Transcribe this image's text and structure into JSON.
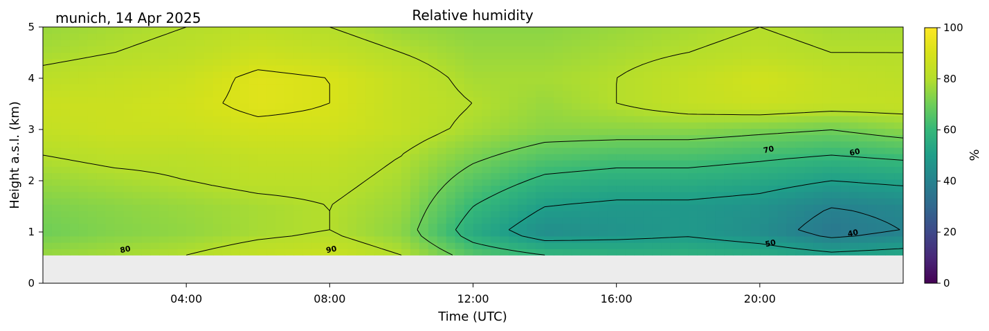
{
  "chart_data": {
    "type": "heatmap",
    "title": "Relative humidity",
    "site_date_label": "munich, 14 Apr 2025",
    "xlabel": "Time (UTC)",
    "ylabel": "Height a.s.l. (km)",
    "x_range_hours": [
      0,
      24
    ],
    "xticks": [
      {
        "hour": 4,
        "label": "04:00"
      },
      {
        "hour": 8,
        "label": "08:00"
      },
      {
        "hour": 12,
        "label": "12:00"
      },
      {
        "hour": 16,
        "label": "16:00"
      },
      {
        "hour": 20,
        "label": "20:00"
      }
    ],
    "ylim": [
      0,
      5
    ],
    "yticks": [
      0,
      1,
      2,
      3,
      4,
      5
    ],
    "data_min_height_km": 0.55,
    "colorbar": {
      "label": "%",
      "range": [
        0,
        100
      ],
      "ticks": [
        0,
        20,
        40,
        60,
        80,
        100
      ],
      "colormap": "viridis"
    },
    "contour_levels": [
      40,
      50,
      60,
      70,
      80,
      90
    ],
    "contour_labels": [
      {
        "text": "80",
        "hour": 2.3,
        "height_km": 0.65
      },
      {
        "text": "90",
        "hour": 8.05,
        "height_km": 0.65
      },
      {
        "text": "70",
        "hour": 20.25,
        "height_km": 2.6
      },
      {
        "text": "60",
        "hour": 22.65,
        "height_km": 2.55
      },
      {
        "text": "50",
        "hour": 20.3,
        "height_km": 0.77
      },
      {
        "text": "40",
        "hour": 22.6,
        "height_km": 0.97
      }
    ],
    "rh_field": {
      "times_h": [
        0,
        2,
        4,
        6,
        8,
        10,
        12,
        14,
        16,
        18,
        20,
        22,
        24
      ],
      "heights_km": [
        0.55,
        1.0,
        1.5,
        2.0,
        2.5,
        3.0,
        3.5,
        4.0,
        4.5,
        5.0
      ],
      "rh_percent": [
        [
          76,
          78,
          80,
          84,
          86,
          80,
          66,
          60,
          58,
          58,
          56,
          52,
          54
        ],
        [
          70,
          73,
          75,
          78,
          80,
          74,
          55,
          44,
          46,
          48,
          44,
          36,
          40
        ],
        [
          72,
          74,
          76,
          78,
          80,
          76,
          60,
          50,
          48,
          48,
          46,
          40,
          42
        ],
        [
          76,
          78,
          80,
          82,
          82,
          78,
          66,
          58,
          56,
          56,
          54,
          50,
          52
        ],
        [
          80,
          82,
          82,
          84,
          84,
          80,
          72,
          66,
          64,
          64,
          62,
          60,
          62
        ],
        [
          84,
          86,
          86,
          88,
          88,
          84,
          78,
          74,
          74,
          74,
          72,
          70,
          74
        ],
        [
          86,
          86,
          88,
          92,
          90,
          84,
          80,
          76,
          80,
          84,
          86,
          84,
          84
        ],
        [
          82,
          84,
          86,
          92,
          90,
          84,
          78,
          78,
          80,
          84,
          88,
          84,
          82
        ],
        [
          78,
          80,
          82,
          86,
          84,
          80,
          76,
          76,
          78,
          80,
          82,
          80,
          80
        ],
        [
          76,
          78,
          80,
          82,
          80,
          76,
          74,
          74,
          76,
          78,
          80,
          78,
          78
        ]
      ]
    }
  }
}
